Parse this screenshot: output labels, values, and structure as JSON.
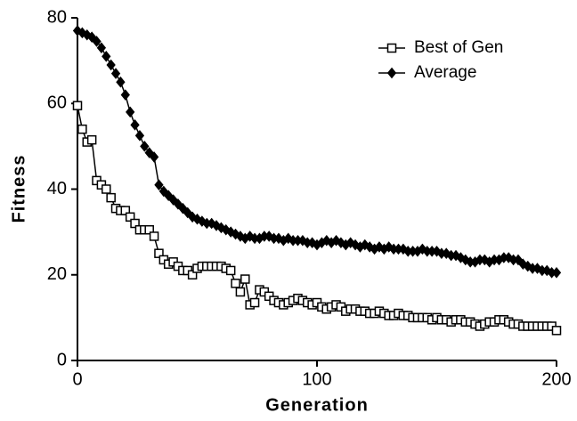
{
  "chart_data": {
    "type": "line",
    "x_label": "Generation",
    "y_label": "Fitness",
    "x": [
      0,
      2,
      4,
      6,
      8,
      10,
      12,
      14,
      16,
      18,
      20,
      22,
      24,
      26,
      28,
      30,
      32,
      34,
      36,
      38,
      40,
      42,
      44,
      46,
      48,
      50,
      52,
      54,
      56,
      58,
      60,
      62,
      64,
      66,
      68,
      70,
      72,
      74,
      76,
      78,
      80,
      82,
      84,
      86,
      88,
      90,
      92,
      94,
      96,
      98,
      100,
      102,
      104,
      106,
      108,
      110,
      112,
      114,
      116,
      118,
      120,
      122,
      124,
      126,
      128,
      130,
      132,
      134,
      136,
      138,
      140,
      142,
      144,
      146,
      148,
      150,
      152,
      154,
      156,
      158,
      160,
      162,
      164,
      166,
      168,
      170,
      172,
      174,
      176,
      178,
      180,
      182,
      184,
      186,
      188,
      190,
      192,
      194,
      196,
      198,
      200
    ],
    "series": [
      {
        "name": "Best of Gen",
        "color": "#000000",
        "marker": "square",
        "filled": false,
        "values": [
          59.5,
          54,
          51,
          51.5,
          42,
          41,
          40,
          38,
          35.5,
          35,
          35,
          33.5,
          32,
          30.5,
          30.5,
          30.5,
          29,
          25,
          23.5,
          22.5,
          23,
          22,
          21,
          21,
          20,
          21.5,
          22,
          22,
          22,
          22,
          22,
          21.5,
          21,
          18,
          16,
          19,
          13,
          13.5,
          16.5,
          16,
          15,
          14,
          13.5,
          13,
          13.5,
          14,
          14.5,
          14,
          13.5,
          13,
          13.5,
          12.5,
          12,
          12.5,
          13,
          12.5,
          11.5,
          12,
          12,
          11.5,
          11.5,
          11,
          11,
          11.5,
          11,
          10.5,
          10.5,
          11,
          10.5,
          10.5,
          10,
          10,
          10,
          10,
          9.5,
          10,
          9.5,
          9.5,
          9,
          9.5,
          9.5,
          9,
          9,
          8.5,
          8,
          8.5,
          9,
          9,
          9.5,
          9.5,
          9,
          8.5,
          8.5,
          8,
          8,
          8,
          8,
          8,
          8,
          8,
          7
        ]
      },
      {
        "name": "Average",
        "color": "#000000",
        "marker": "diamond",
        "filled": true,
        "values": [
          77,
          76.5,
          76,
          75.5,
          74.5,
          73,
          71,
          69,
          67,
          65,
          62,
          58,
          55,
          52.5,
          50,
          48.5,
          47.5,
          41,
          39.5,
          38.5,
          37.5,
          36.5,
          35.5,
          34.5,
          33.5,
          33,
          32.5,
          32,
          32,
          31.5,
          31,
          30.5,
          30,
          29.5,
          29,
          28.5,
          29,
          28.5,
          28.5,
          29,
          29,
          28.5,
          28.5,
          28,
          28.5,
          28,
          28,
          28,
          27.5,
          27.5,
          27,
          27.5,
          28,
          27.5,
          28,
          27.5,
          27,
          27.5,
          27,
          26.5,
          27,
          26.5,
          26,
          26.5,
          26,
          26.5,
          26,
          26,
          26,
          25.5,
          25.5,
          25.5,
          26,
          25.5,
          25.5,
          25.5,
          25,
          25,
          24.5,
          24.5,
          24,
          23.5,
          23,
          23,
          23.5,
          23.5,
          23,
          23.5,
          23.5,
          24,
          24,
          23.5,
          23.5,
          22.5,
          22,
          21.5,
          21.5,
          21,
          21,
          20.5,
          20.5
        ]
      }
    ],
    "xlim": [
      0,
      200
    ],
    "xticks": [
      0,
      100,
      200
    ],
    "ylim": [
      0,
      80
    ],
    "yticks": [
      0,
      20,
      40,
      60,
      80
    ],
    "legend": "upper right",
    "grid": false
  }
}
